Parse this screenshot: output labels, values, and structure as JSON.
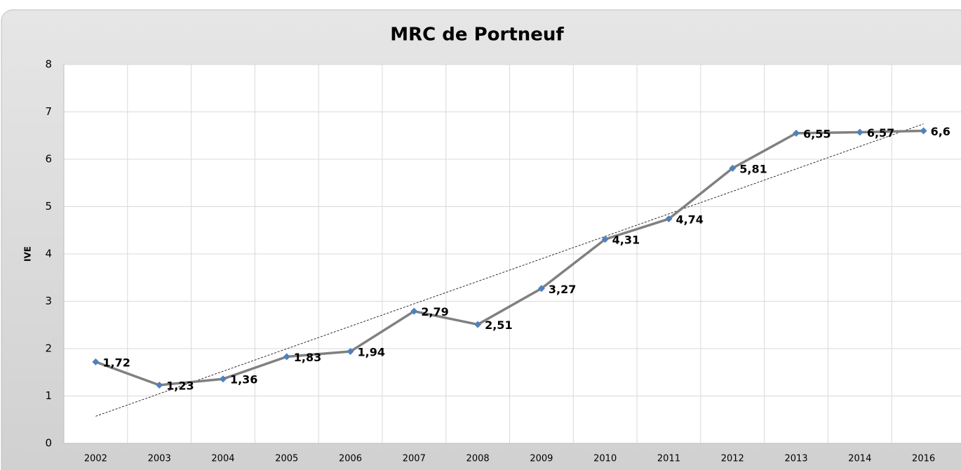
{
  "chart_data": {
    "type": "line",
    "title": "MRC de Portneuf",
    "y_label": "IVE",
    "categories": [
      "2002",
      "2003",
      "2004",
      "2005",
      "2006",
      "2007",
      "2008",
      "2009",
      "2010",
      "2011",
      "2012",
      "2013",
      "2014",
      "2016"
    ],
    "values": [
      1.72,
      1.23,
      1.36,
      1.83,
      1.94,
      2.79,
      2.51,
      3.27,
      4.31,
      4.74,
      5.81,
      6.55,
      6.57,
      6.6
    ],
    "value_labels": [
      "1,72",
      "1,23",
      "1,36",
      "1,83",
      "1,94",
      "2,79",
      "2,51",
      "3,27",
      "4,31",
      "4,74",
      "5,81",
      "6,55",
      "6,57",
      "6,6"
    ],
    "color": "#808080",
    "marker_color": "#4f81bd",
    "trendline": true,
    "ylim": [
      0,
      8
    ],
    "yticks": [
      0,
      1,
      2,
      3,
      4,
      5,
      6,
      7,
      8
    ],
    "grid": true
  }
}
